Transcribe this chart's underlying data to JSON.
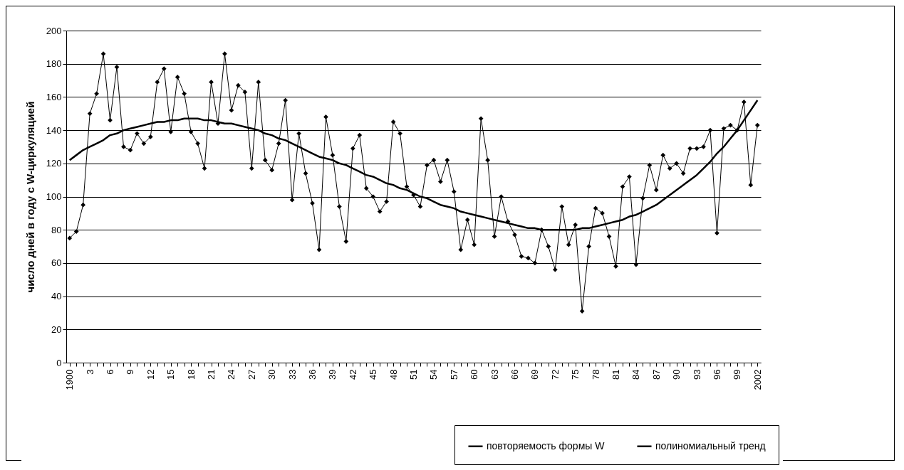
{
  "chart_data": {
    "type": "line",
    "ylabel": "число дней в году с W-циркуляцией",
    "categories": [
      "1900",
      null,
      null,
      "3",
      null,
      null,
      "6",
      null,
      null,
      "9",
      null,
      null,
      "12",
      null,
      null,
      "15",
      null,
      null,
      "18",
      null,
      null,
      "21",
      null,
      null,
      "24",
      null,
      null,
      "27",
      null,
      null,
      "30",
      null,
      null,
      "33",
      null,
      null,
      "36",
      null,
      null,
      "39",
      null,
      null,
      "42",
      null,
      null,
      "45",
      null,
      null,
      "48",
      null,
      null,
      "51",
      null,
      null,
      "54",
      null,
      null,
      "57",
      null,
      null,
      "60",
      null,
      null,
      "63",
      null,
      null,
      "66",
      null,
      null,
      "69",
      null,
      null,
      "72",
      null,
      null,
      "75",
      null,
      null,
      "78",
      null,
      null,
      "81",
      null,
      null,
      "84",
      null,
      null,
      "87",
      null,
      null,
      "90",
      null,
      null,
      "93",
      null,
      null,
      "96",
      null,
      null,
      "99",
      null,
      null,
      "2002"
    ],
    "series": [
      {
        "name": "повторяемость формы W",
        "color": "#000000",
        "marker": "diamond",
        "line_style": "solid",
        "values": [
          75,
          79,
          95,
          150,
          162,
          186,
          146,
          178,
          130,
          128,
          138,
          132,
          136,
          169,
          177,
          139,
          172,
          162,
          139,
          132,
          117,
          169,
          144,
          186,
          152,
          167,
          163,
          117,
          169,
          122,
          116,
          132,
          158,
          98,
          138,
          114,
          96,
          68,
          148,
          125,
          94,
          73,
          129,
          137,
          105,
          100,
          91,
          97,
          145,
          138,
          106,
          101,
          94,
          119,
          122,
          109,
          122,
          103,
          68,
          86,
          71,
          147,
          122,
          76,
          100,
          85,
          77,
          64,
          63,
          60,
          80,
          70,
          56,
          94,
          71,
          83,
          31,
          70,
          93,
          90,
          76,
          58,
          106,
          112,
          59,
          99,
          119,
          104,
          125,
          117,
          120,
          114,
          129,
          129,
          130,
          140,
          78,
          141,
          143,
          140,
          157,
          107,
          143
        ]
      },
      {
        "name": "полиномиальный тренд",
        "color": "#000000",
        "marker": "none",
        "line_style": "solid",
        "values": [
          122,
          125,
          128,
          130,
          132,
          134,
          137,
          138,
          140,
          141,
          142,
          143,
          144,
          145,
          145,
          146,
          146,
          147,
          147,
          147,
          146,
          146,
          145,
          144,
          144,
          143,
          142,
          141,
          140,
          138,
          137,
          135,
          134,
          132,
          130,
          128,
          126,
          124,
          123,
          122,
          120,
          119,
          117,
          115,
          113,
          112,
          110,
          108,
          107,
          105,
          104,
          102,
          100,
          99,
          97,
          95,
          94,
          93,
          91,
          90,
          89,
          88,
          87,
          86,
          85,
          84,
          83,
          82,
          81,
          81,
          80,
          80,
          80,
          80,
          80,
          80,
          81,
          81,
          82,
          83,
          84,
          85,
          86,
          88,
          89,
          91,
          93,
          95,
          98,
          101,
          104,
          107,
          110,
          113,
          117,
          121,
          126,
          130,
          135,
          140,
          146,
          152,
          158
        ]
      }
    ],
    "ylim": [
      0,
      200
    ],
    "yticks": [
      0,
      20,
      40,
      60,
      80,
      100,
      120,
      140,
      160,
      180,
      200
    ],
    "grid": "y",
    "legend": "bottom right"
  }
}
